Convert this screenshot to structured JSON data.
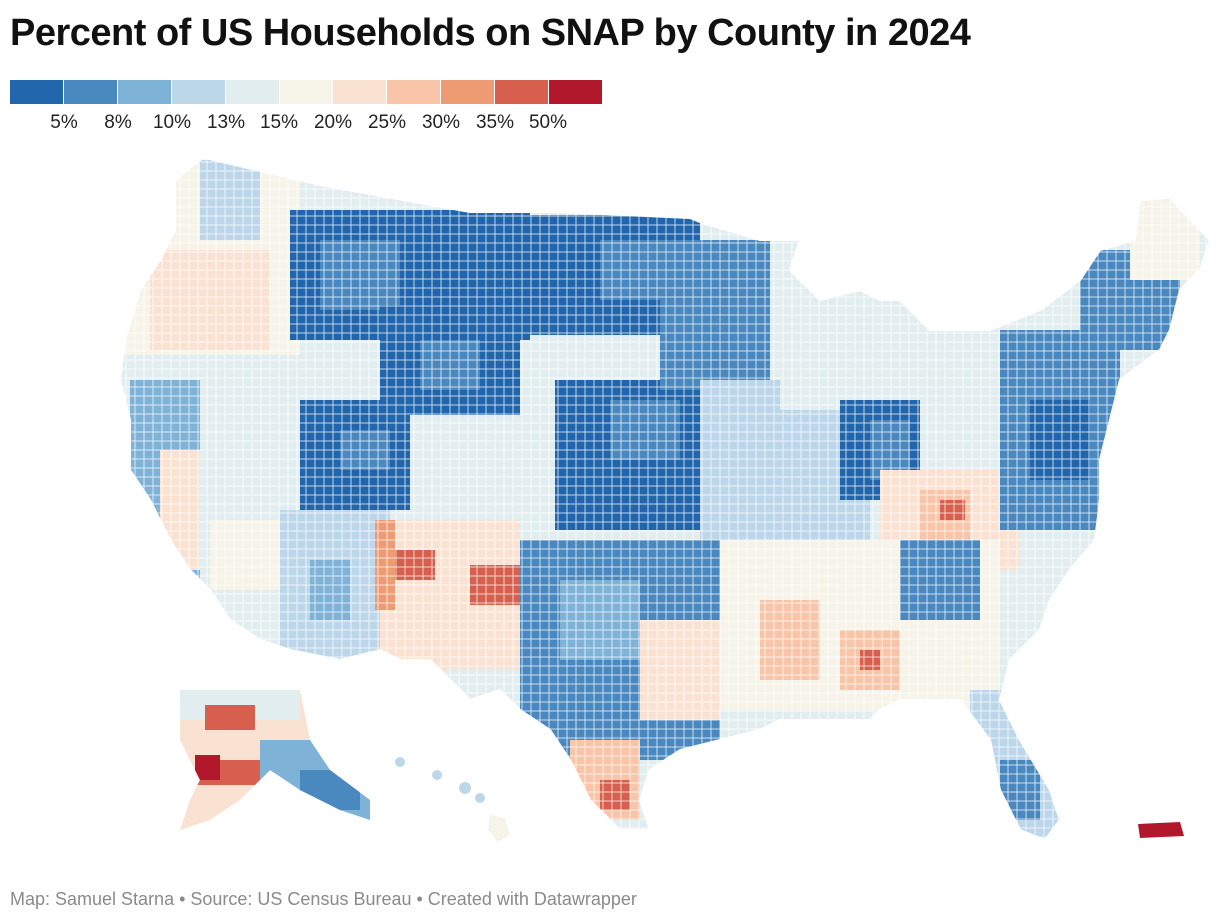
{
  "header": {
    "title": "Percent of US Households on SNAP by County in 2024"
  },
  "legend": {
    "colors": [
      "#2166ac",
      "#4a89c0",
      "#7fb2d7",
      "#bcd6ea",
      "#e2edf0",
      "#f6f3e8",
      "#fae2d3",
      "#f8c5a8",
      "#ee9a73",
      "#d6604d",
      "#b2182b"
    ],
    "labels": [
      "5%",
      "8%",
      "10%",
      "13%",
      "15%",
      "20%",
      "25%",
      "30%",
      "35%",
      "50%"
    ]
  },
  "map": {
    "description_colors": {
      "border": "#ffffff",
      "background": "#ffffff"
    }
  },
  "footer": {
    "credit": "Map: Samuel Starna • Source: US Census Bureau • Created with Datawrapper"
  }
}
